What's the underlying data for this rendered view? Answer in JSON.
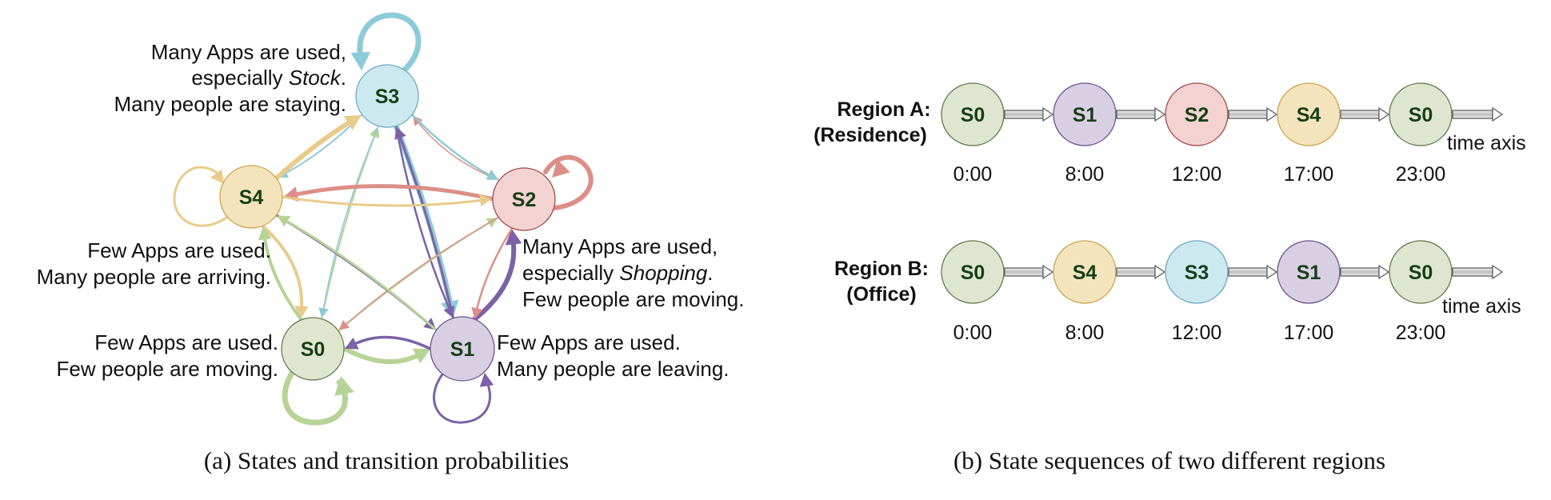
{
  "colors": {
    "S0": {
      "fill": "#dfe6d0",
      "stroke": "#5f7a4a",
      "edge": "#b7d396"
    },
    "S1": {
      "fill": "#d9cfe3",
      "stroke": "#6a528a",
      "edge": "#7b62a6"
    },
    "S2": {
      "fill": "#f3d2d2",
      "stroke": "#a24a4a",
      "edge": "#dc8f88"
    },
    "S3": {
      "fill": "#cce9f0",
      "stroke": "#6cabbd",
      "edge": "#8dcbd9"
    },
    "S4": {
      "fill": "#f4e4bd",
      "stroke": "#c9a54b",
      "edge": "#e8cc8a"
    }
  },
  "panel_a": {
    "caption": "(a)  States and transition probabilities",
    "states": [
      {
        "id": "S0",
        "label": "S0",
        "description": [
          "Few Apps are used.",
          "Few people are moving."
        ]
      },
      {
        "id": "S1",
        "label": "S1",
        "description": [
          "Few Apps are used.",
          "Many people are leaving."
        ]
      },
      {
        "id": "S2",
        "label": "S2",
        "description": [
          "Many Apps are used,",
          "especially ",
          "Shopping",
          ".",
          "Few people are moving."
        ]
      },
      {
        "id": "S3",
        "label": "S3",
        "description": [
          "Many Apps are used,",
          "especially ",
          "Stock",
          ".",
          "Many people are staying."
        ]
      },
      {
        "id": "S4",
        "label": "S4",
        "description": [
          "Few Apps are used.",
          "Many people are arriving."
        ]
      }
    ]
  },
  "panel_b": {
    "caption": "(b)  State sequences of two different regions",
    "axis_label": "time axis",
    "regions": [
      {
        "name": "Region A:",
        "type": "(Residence)",
        "sequence": [
          "S0",
          "S1",
          "S2",
          "S4",
          "S0"
        ],
        "times": [
          "0:00",
          "8:00",
          "12:00",
          "17:00",
          "23:00"
        ]
      },
      {
        "name": "Region B:",
        "type": "(Office)",
        "sequence": [
          "S0",
          "S4",
          "S3",
          "S1",
          "S0"
        ],
        "times": [
          "0:00",
          "8:00",
          "12:00",
          "17:00",
          "23:00"
        ]
      }
    ]
  }
}
